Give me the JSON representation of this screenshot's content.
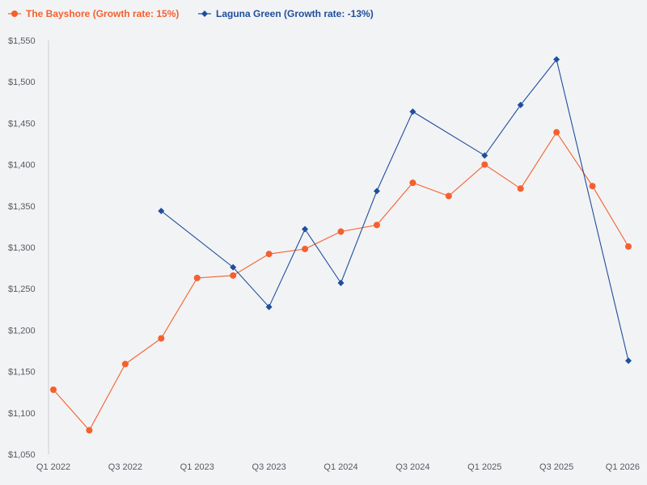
{
  "chart_data": {
    "type": "line",
    "title": "",
    "xlabel": "",
    "ylabel": "",
    "ylim": [
      1050,
      1550
    ],
    "y_ticks": [
      1050,
      1100,
      1150,
      1200,
      1250,
      1300,
      1350,
      1400,
      1450,
      1500,
      1550
    ],
    "y_tick_labels": [
      "$1,050",
      "$1,100",
      "$1,150",
      "$1,200",
      "$1,250",
      "$1,300",
      "$1,350",
      "$1,400",
      "$1,450",
      "$1,500",
      "$1,550"
    ],
    "categories": [
      "Q1 2022",
      "Q2 2022",
      "Q3 2022",
      "Q4 2022",
      "Q1 2023",
      "Q2 2023",
      "Q3 2023",
      "Q4 2023",
      "Q1 2024",
      "Q2 2024",
      "Q3 2024",
      "Q4 2024",
      "Q1 2025",
      "Q2 2025",
      "Q3 2025",
      "Q4 2025",
      "Q1 2026"
    ],
    "x_tick_labels": [
      "Q1 2022",
      "Q3 2022",
      "Q1 2023",
      "Q3 2023",
      "Q1 2024",
      "Q3 2024",
      "Q1 2025",
      "Q3 2025",
      "Q1 2026"
    ],
    "x_tick_indices": [
      0,
      2,
      4,
      6,
      8,
      10,
      12,
      14,
      16
    ],
    "legend_position": "top-left",
    "series": [
      {
        "name": "The Bayshore (Growth rate: 15%)",
        "color": "#f4602e",
        "marker": "circle",
        "values": [
          1128,
          1079,
          1159,
          1190,
          1263,
          1266,
          1292,
          1298,
          1319,
          1327,
          1378,
          1362,
          1400,
          1371,
          1439,
          1374,
          1301
        ]
      },
      {
        "name": "Laguna Green (Growth rate: -13%)",
        "color": "#1f4e9c",
        "marker": "diamond",
        "values": [
          null,
          null,
          null,
          1344,
          null,
          1276,
          1228,
          1322,
          1257,
          1368,
          1464,
          null,
          1411,
          1472,
          1527,
          null,
          1163
        ]
      }
    ]
  }
}
